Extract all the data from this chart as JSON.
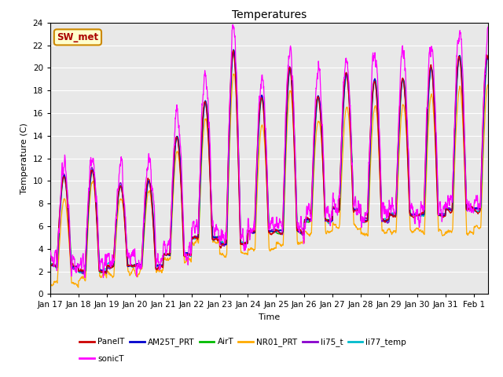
{
  "title": "Temperatures",
  "xlabel": "Time",
  "ylabel": "Temperature (C)",
  "ylim": [
    0,
    24
  ],
  "yticks": [
    0,
    2,
    4,
    6,
    8,
    10,
    12,
    14,
    16,
    18,
    20,
    22,
    24
  ],
  "xtick_labels": [
    "Jan 17",
    "Jan 18",
    "Jan 19",
    "Jan 20",
    "Jan 21",
    "Jan 22",
    "Jan 23",
    "Jan 24",
    "Jan 25",
    "Jan 26",
    "Jan 27",
    "Jan 28",
    "Jan 29",
    "Jan 30",
    "Jan 31",
    "Feb 1"
  ],
  "series_colors": {
    "PanelT": "#cc0000",
    "AM25T_PRT": "#0000cc",
    "AirT": "#00bb00",
    "NR01_PRT": "#ffaa00",
    "li75_t": "#8800cc",
    "li77_temp": "#00bbcc",
    "sonicT": "#ff00ff"
  },
  "legend_entries": [
    "PanelT",
    "AM25T_PRT",
    "AirT",
    "NR01_PRT",
    "li75_t",
    "li77_temp",
    "sonicT"
  ],
  "annotation_text": "SW_met",
  "annotation_bg": "#ffffcc",
  "annotation_border": "#cc8800",
  "annotation_text_color": "#aa0000",
  "bg_color": "#ffffff",
  "plot_bg_color": "#e8e8e8",
  "grid_color": "#ffffff",
  "linewidth": 0.9
}
